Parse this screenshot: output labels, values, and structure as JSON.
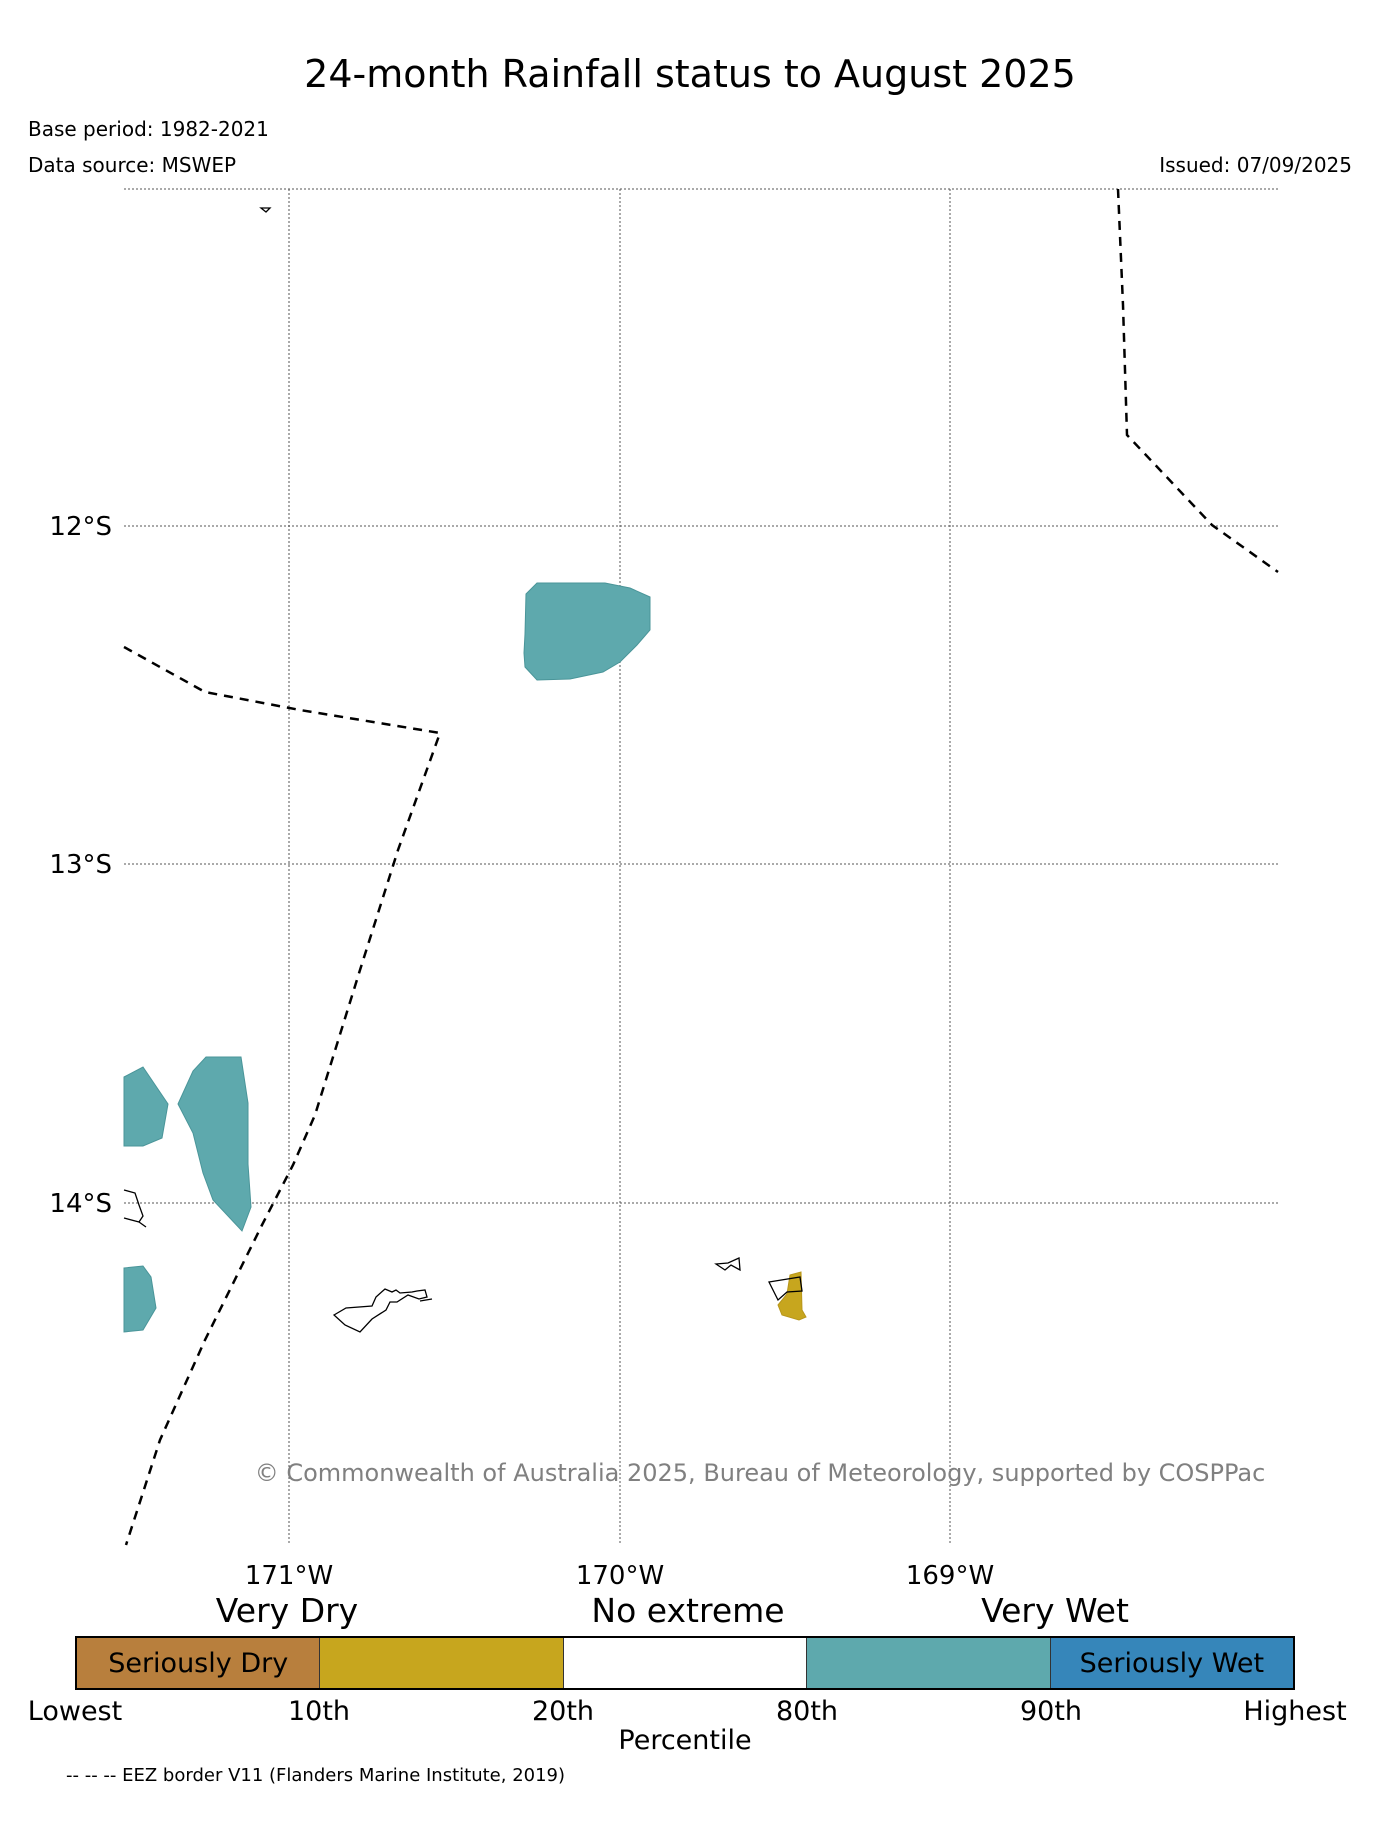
{
  "title": "24-month Rainfall status to August 2025",
  "base_period": "Base period: 1982-2021",
  "data_source": "Data source: MSWEP",
  "issued": "Issued: 07/09/2025",
  "map": {
    "lat_labels": [
      "12°S",
      "13°S",
      "14°S"
    ],
    "lon_labels": [
      "171°W",
      "170°W",
      "169°W"
    ],
    "copyright": "© Commonwealth of Australia 2025, Bureau of Meteorology, supported by COSPPac",
    "colors": {
      "seriously_dry": "#B87F3D",
      "very_dry": "#C7A61E",
      "no_extreme": "#FFFFFF",
      "very_wet": "#5EA9AD",
      "seriously_wet": "#3686BA"
    }
  },
  "legend": {
    "category_labels": {
      "very_dry": "Very Dry",
      "no_extreme": "No extreme",
      "very_wet": "Very Wet"
    },
    "segments": [
      {
        "label": "Seriously Dry",
        "color": "#B87F3D"
      },
      {
        "label": "",
        "color": "#C7A61E"
      },
      {
        "label": "",
        "color": "#FFFFFF"
      },
      {
        "label": "",
        "color": "#5EA9AD"
      },
      {
        "label": "Seriously Wet",
        "color": "#3686BA"
      }
    ],
    "ticks": [
      "Lowest",
      "10th",
      "20th",
      "80th",
      "90th",
      "Highest"
    ],
    "axis_label": "Percentile"
  },
  "eez_note": "-- -- -- EEZ border V11 (Flanders Marine Institute, 2019)"
}
